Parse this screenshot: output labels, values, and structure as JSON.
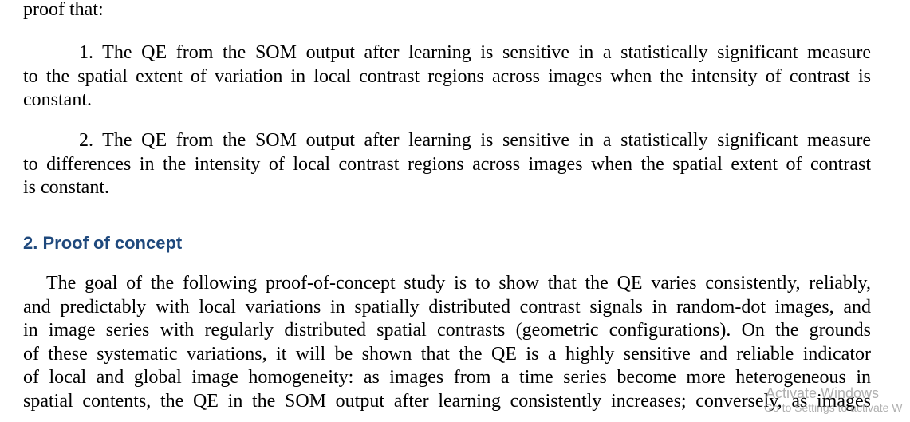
{
  "document": {
    "intro_line": "proof that:",
    "item1": {
      "lines": [
        "1. The QE from the SOM output after learning is sensitive in a statistically significant measure",
        "to the spatial extent of variation in local contrast regions across images when the intensity of contrast is",
        "constant."
      ]
    },
    "item2": {
      "lines": [
        "2. The QE from the SOM output after learning is sensitive in a statistically significant measure",
        "to differences in the intensity of local contrast regions across images when the spatial extent of contrast",
        "is constant."
      ]
    },
    "section_heading": "2. Proof of concept",
    "paragraph": {
      "lines": [
        "The goal of the following proof-of-concept study is to show that the QE varies consistently, reliably,",
        "and predictably with local variations in spatially distributed contrast signals in random-dot images, and",
        "in image series with regularly distributed spatial contrasts (geometric configurations). On the grounds",
        "of these systematic variations, it will be shown that the QE is a highly sensitive and reliable indicator",
        "of local and global image homogeneity: as images from a time series become more heterogeneous in",
        "spatial contents, the QE in the SOM output after learning consistently increases; conversely, as images"
      ]
    }
  },
  "watermark": {
    "line1": "Activate Windows",
    "line2": "Go to Settings to activate W"
  }
}
